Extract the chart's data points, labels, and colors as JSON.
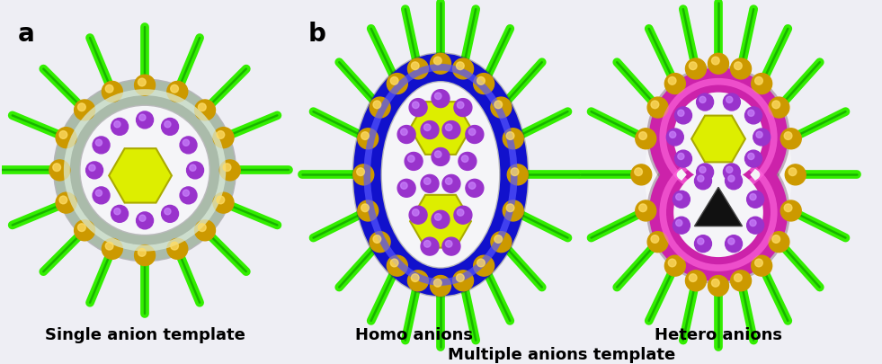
{
  "background_color": "#eeeef4",
  "figure_width": 9.81,
  "figure_height": 4.06,
  "dpi": 100,
  "label_a": "a",
  "label_b": "b",
  "label_fontsize": 20,
  "label_fontweight": "bold",
  "text_single": "Single anion template",
  "text_homo": "Homo anions",
  "text_hetero": "Hetero anions",
  "text_multiple": "Multiple anions template",
  "text_fontsize": 13,
  "text_fontweight": "bold",
  "green_color": "#33ee00",
  "green_dark": "#007700",
  "green_mid": "#22bb00",
  "gold_color": "#cc9900",
  "gold_light": "#ffdd66",
  "purple_color": "#9933cc",
  "purple_light": "#cc88ff",
  "yellow_hex": "#ddee00",
  "yellow_hex_edge": "#aaaa00",
  "ring1_color": "#aabbaa",
  "ring1_light": "#ddeedd",
  "ring2_color": "#1111cc",
  "ring2_light": "#5555ff",
  "ring3_color": "#cc22aa",
  "ring3_light": "#ff66dd",
  "white": "#ffffff",
  "black": "#111111"
}
